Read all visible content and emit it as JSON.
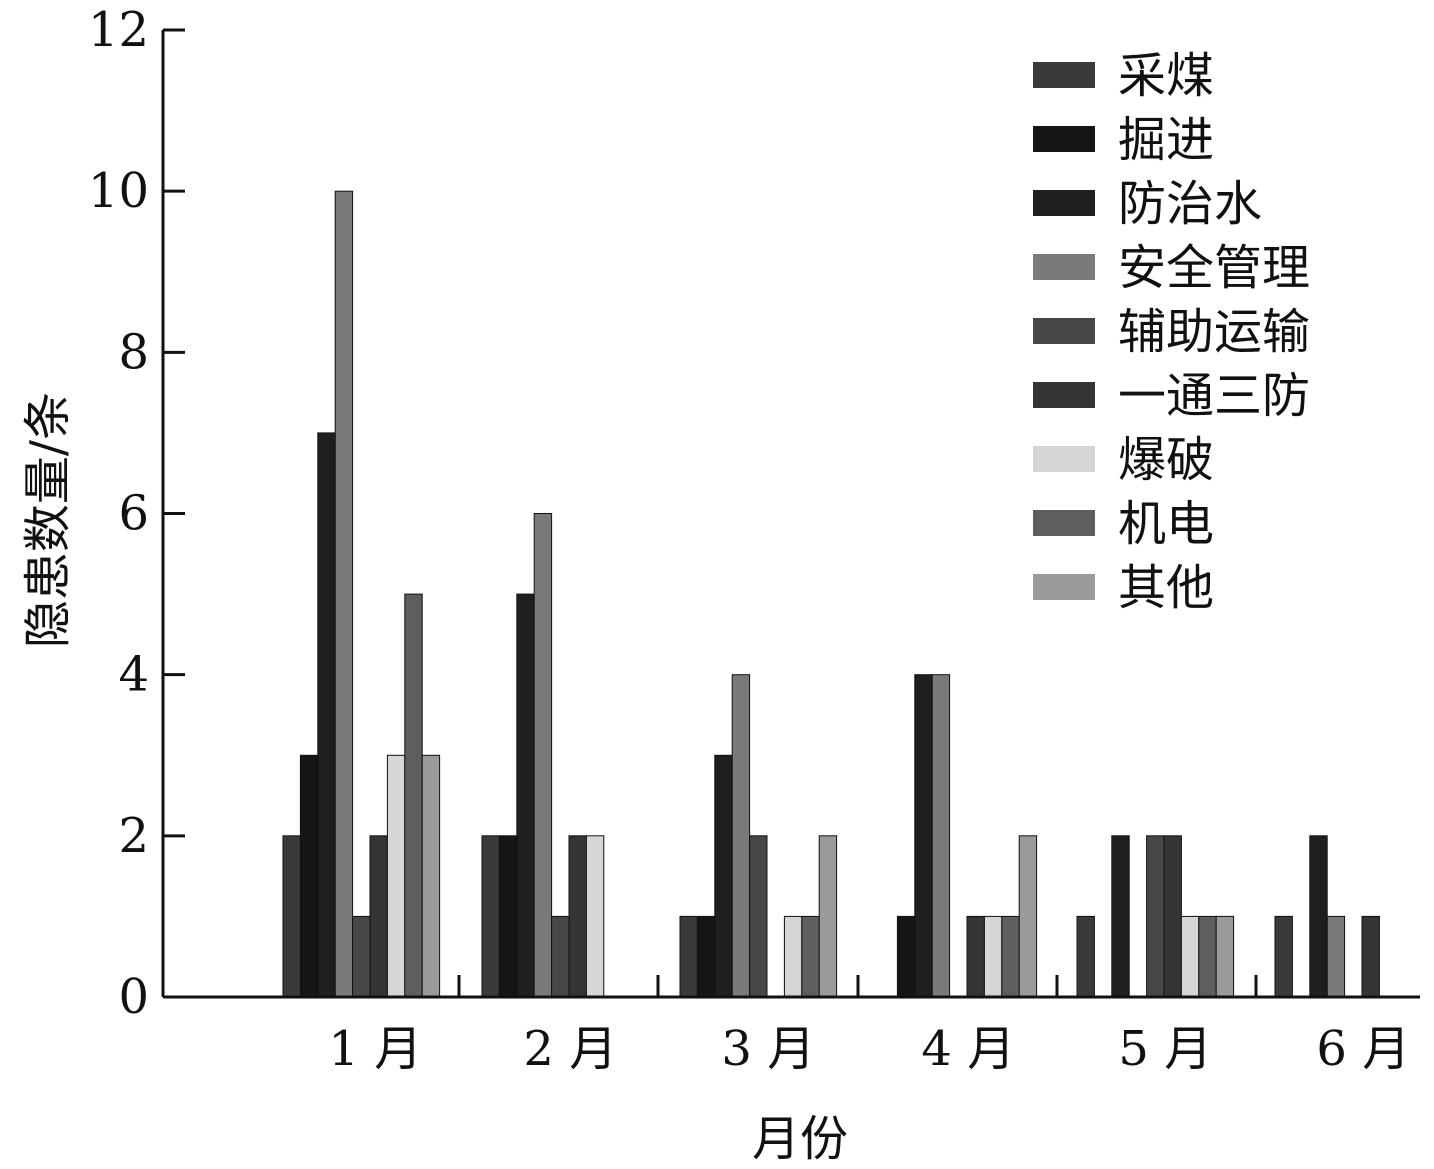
{
  "chart_data": {
    "type": "bar",
    "xlabel": "月份",
    "ylabel": "隐患数量/条",
    "ylim": [
      0,
      12
    ],
    "yticks": [
      0,
      2,
      4,
      6,
      8,
      10,
      12
    ],
    "categories": [
      "1 月",
      "2 月",
      "3 月",
      "4 月",
      "5 月",
      "6 月"
    ],
    "legend_position": "top-right",
    "series": [
      {
        "name": "采煤",
        "color": "#3a3a3a",
        "values": [
          2,
          2,
          1,
          0,
          1,
          1
        ]
      },
      {
        "name": "掘进",
        "color": "#151515",
        "values": [
          3,
          2,
          1,
          1,
          0,
          0
        ]
      },
      {
        "name": "防治水",
        "color": "#1f1f1f",
        "values": [
          7,
          5,
          3,
          4,
          2,
          2
        ]
      },
      {
        "name": "安全管理",
        "color": "#7a7a7a",
        "values": [
          10,
          6,
          4,
          4,
          0,
          1
        ]
      },
      {
        "name": "辅助运输",
        "color": "#474747",
        "values": [
          1,
          1,
          2,
          0,
          2,
          0
        ]
      },
      {
        "name": "一通三防",
        "color": "#353535",
        "values": [
          2,
          2,
          0,
          1,
          2,
          1
        ]
      },
      {
        "name": "爆破",
        "color": "#d6d6d6",
        "values": [
          3,
          2,
          1,
          1,
          1,
          0
        ]
      },
      {
        "name": "机电",
        "color": "#5e5e5e",
        "values": [
          5,
          0,
          1,
          1,
          1,
          0
        ]
      },
      {
        "name": "其他",
        "color": "#9a9a9a",
        "values": [
          3,
          0,
          2,
          2,
          1,
          0
        ]
      }
    ]
  }
}
